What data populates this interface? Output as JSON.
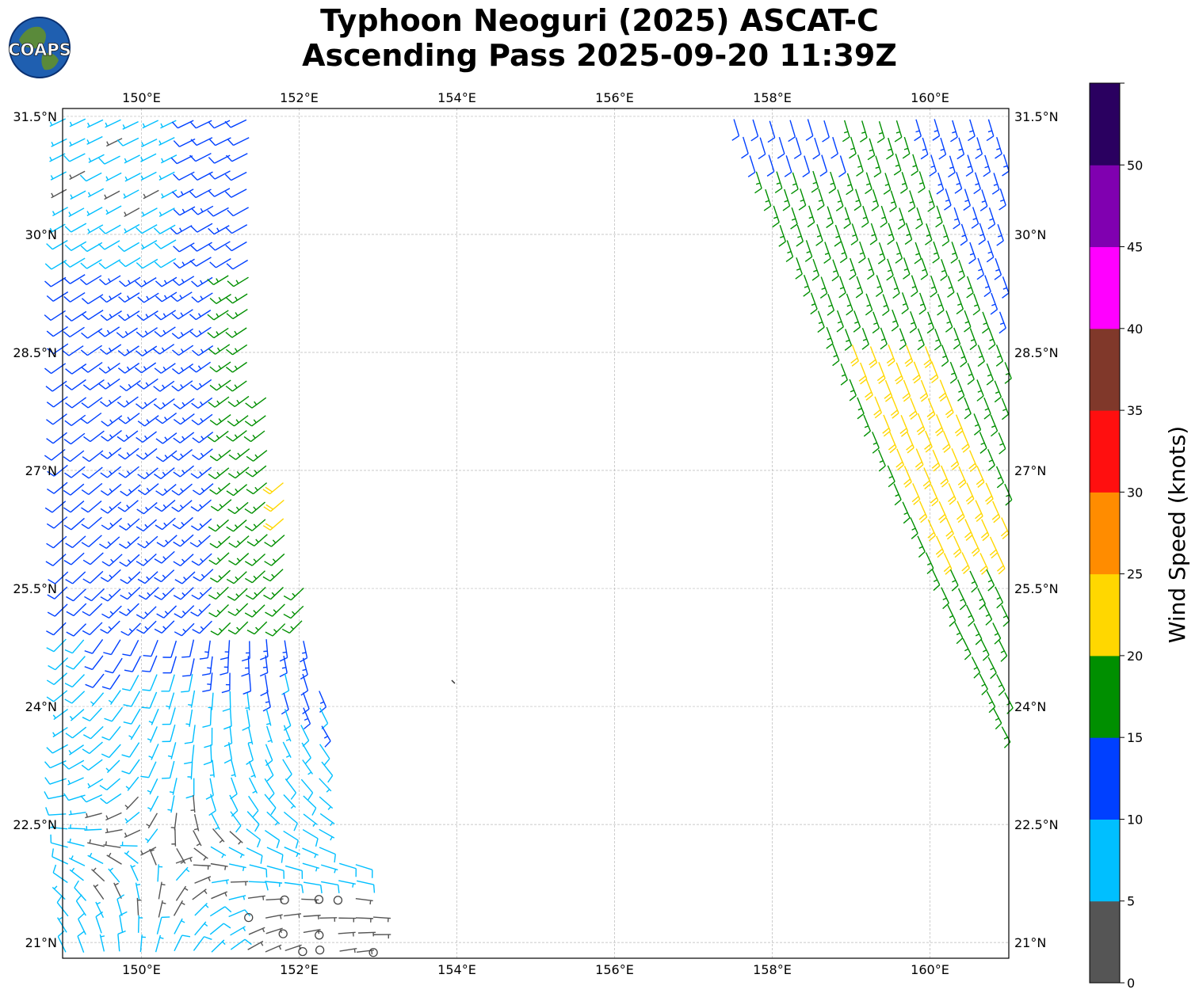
{
  "title": {
    "line1": "Typhoon Neoguri (2025) ASCAT-C",
    "line2": "Ascending Pass 2025-09-20 11:39Z"
  },
  "logo": {
    "text": "COAPS"
  },
  "map": {
    "lon_range": [
      149,
      161
    ],
    "lat_range": [
      20.8,
      31.6
    ],
    "lon_ticks": [
      "150°E",
      "152°E",
      "154°E",
      "156°E",
      "158°E",
      "160°E"
    ],
    "lat_ticks": [
      "31.5°N",
      "30°N",
      "28.5°N",
      "27°N",
      "25.5°N",
      "24°N",
      "22.5°N",
      "21°N"
    ],
    "grid": true
  },
  "colorbar": {
    "label": "Wind Speed (knots)",
    "ticks": [
      "0",
      "5",
      "10",
      "15",
      "20",
      "25",
      "30",
      "35",
      "40",
      "45",
      "50"
    ],
    "bins": [
      {
        "min": 0,
        "max": 5,
        "color": "#555555"
      },
      {
        "min": 5,
        "max": 10,
        "color": "#00bfff"
      },
      {
        "min": 10,
        "max": 15,
        "color": "#0040ff"
      },
      {
        "min": 15,
        "max": 20,
        "color": "#008f00"
      },
      {
        "min": 20,
        "max": 25,
        "color": "#ffd700"
      },
      {
        "min": 25,
        "max": 30,
        "color": "#ff8c00"
      },
      {
        "min": 30,
        "max": 35,
        "color": "#ff0f0f"
      },
      {
        "min": 35,
        "max": 40,
        "color": "#80382a"
      },
      {
        "min": 40,
        "max": 45,
        "color": "#ff00ff"
      },
      {
        "min": 45,
        "max": 50,
        "color": "#8000b0"
      },
      {
        "min": 50,
        "max": 55,
        "color": "#2a0060"
      }
    ]
  }
}
